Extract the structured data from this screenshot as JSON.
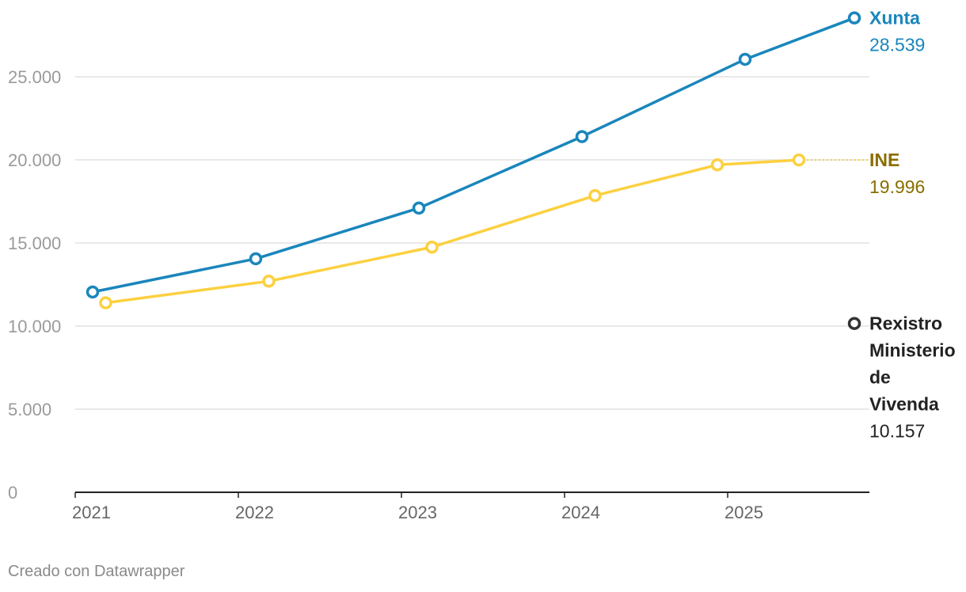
{
  "chart_data": {
    "type": "line",
    "ylim": [
      0,
      30000
    ],
    "y_ticks": [
      0,
      5000,
      10000,
      15000,
      20000,
      25000
    ],
    "y_tick_labels": [
      "0",
      "5.000",
      "10.000",
      "15.000",
      "20.000",
      "25.000"
    ],
    "x_range": [
      2021,
      2025.75
    ],
    "x_ticks": [
      2021,
      2022,
      2023,
      2024,
      2025
    ],
    "x_tick_labels": [
      "2021",
      "2022",
      "2023",
      "2024",
      "2025"
    ],
    "grid": true,
    "series": [
      {
        "name": "Xunta",
        "color": "#1a86bc",
        "label_color": "#1a86bc",
        "x": [
          2021.0,
          2022.0,
          2023.0,
          2024.0,
          2025.0,
          2025.67
        ],
        "values": [
          12050,
          14050,
          17100,
          21400,
          26050,
          28539
        ],
        "end_label": "28.539"
      },
      {
        "name": "INE",
        "color": "#fcd03f",
        "label_color": "#8a6d00",
        "x": [
          2021.08,
          2022.08,
          2023.08,
          2024.08,
          2024.83,
          2025.33
        ],
        "values": [
          11400,
          12700,
          14750,
          17850,
          19700,
          19996
        ],
        "end_label": "19.996",
        "dotted_extension_to": 2025.75
      },
      {
        "name": "Rexistro Ministerio de Vivenda",
        "name_lines": [
          "Rexistro",
          "Ministerio",
          "de",
          "Vivenda"
        ],
        "color": "#333333",
        "label_color": "#222222",
        "x": [
          2025.67
        ],
        "values": [
          10157
        ],
        "end_label": "10.157"
      }
    ]
  },
  "footer": {
    "credit": "Creado con Datawrapper"
  }
}
